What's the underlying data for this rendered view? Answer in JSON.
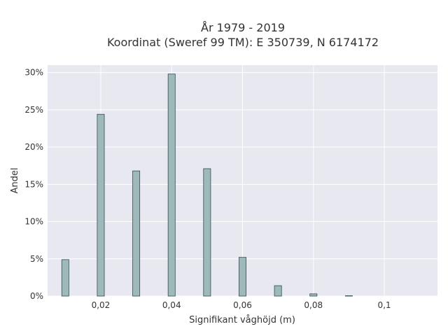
{
  "chart_data": {
    "type": "bar",
    "title_lines": [
      "År 1979 - 2019",
      "Koordinat (Sweref 99 TM): E 350739, N 6174172"
    ],
    "xlabel": "Signifikant våghöjd (m)",
    "ylabel": "Andel",
    "xlim": [
      0.005,
      0.115
    ],
    "ylim": [
      0,
      0.31
    ],
    "x_ticks": [
      0.02,
      0.04,
      0.06,
      0.08,
      0.1
    ],
    "x_tick_labels": [
      "0,02",
      "0,04",
      "0,06",
      "0,08",
      "0,1"
    ],
    "y_ticks": [
      0,
      0.05,
      0.1,
      0.15,
      0.2,
      0.25,
      0.3
    ],
    "y_tick_labels": [
      "0%",
      "5%",
      "10%",
      "15%",
      "20%",
      "25%",
      "30%"
    ],
    "bar_width": 0.002,
    "x": [
      0.01,
      0.02,
      0.03,
      0.04,
      0.05,
      0.06,
      0.07,
      0.08,
      0.09
    ],
    "values": [
      0.049,
      0.244,
      0.168,
      0.298,
      0.171,
      0.052,
      0.014,
      0.003,
      0.0005
    ],
    "grid": true,
    "colors": {
      "bar_fill": "#9fb8b9",
      "bar_stroke": "#2f4f4f",
      "plot_bg": "#e8e8f0",
      "grid": "#ffffff"
    }
  }
}
